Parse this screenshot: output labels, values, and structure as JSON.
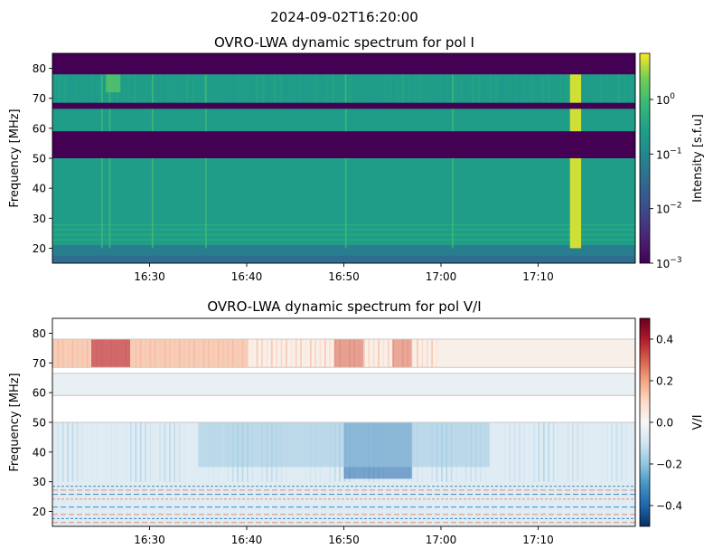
{
  "figure": {
    "suptitle": "2024-09-02T16:20:00"
  },
  "chart_data": [
    {
      "type": "heatmap",
      "title": "OVRO-LWA dynamic spectrum for pol I",
      "xlabel": "",
      "ylabel": "Frequency [MHz]",
      "x_ticks": [
        "16:30",
        "16:40",
        "16:50",
        "17:00",
        "17:10"
      ],
      "x_tick_minutes": [
        10,
        20,
        30,
        40,
        50
      ],
      "x_range_minutes": [
        0,
        60
      ],
      "y_range": [
        15,
        85
      ],
      "y_ticks": [
        20,
        30,
        40,
        50,
        60,
        70,
        80
      ],
      "colorbar": {
        "label": "Intensity [s.f.u]",
        "scale": "log",
        "range": [
          0.001,
          7
        ],
        "ticks": [
          {
            "base": "10",
            "exp": "0",
            "value": 1
          },
          {
            "base": "10",
            "exp": "−1",
            "value": 0.1
          },
          {
            "base": "10",
            "exp": "−2",
            "value": 0.01
          },
          {
            "base": "10",
            "exp": "−3",
            "value": 0.001
          }
        ],
        "colormap": "viridis"
      },
      "masked_bands_mhz": [
        [
          78,
          85
        ],
        [
          66.5,
          68.5
        ],
        [
          50,
          59
        ]
      ],
      "background_level": 0.25,
      "burst_minutes": [
        5.1,
        5.9,
        10.3,
        15.8,
        30.2,
        41.2,
        53.6,
        54.1
      ]
    },
    {
      "type": "heatmap",
      "title": "OVRO-LWA dynamic spectrum for pol V/I",
      "xlabel": "",
      "ylabel": "Frequency [MHz]",
      "x_ticks": [
        "16:30",
        "16:40",
        "16:50",
        "17:00",
        "17:10"
      ],
      "x_tick_minutes": [
        10,
        20,
        30,
        40,
        50
      ],
      "x_range_minutes": [
        0,
        60
      ],
      "y_range": [
        15,
        85
      ],
      "y_ticks": [
        20,
        30,
        40,
        50,
        60,
        70,
        80
      ],
      "colorbar": {
        "label": "V/I",
        "scale": "linear",
        "range": [
          -0.5,
          0.5
        ],
        "ticks": [
          "0.4",
          "0.2",
          "0.0",
          "−0.2",
          "−0.4"
        ],
        "tick_values": [
          0.4,
          0.2,
          0.0,
          -0.2,
          -0.4
        ],
        "colormap": "RdBu_r"
      },
      "masked_bands_mhz": [
        [
          78,
          85
        ],
        [
          66.5,
          68.5
        ],
        [
          50,
          59
        ]
      ],
      "features": [
        {
          "band_mhz": [
            68.5,
            78
          ],
          "minutes": [
            0,
            20
          ],
          "value": 0.18
        },
        {
          "band_mhz": [
            68.5,
            78
          ],
          "minutes": [
            4,
            8
          ],
          "value": 0.4
        },
        {
          "band_mhz": [
            68.5,
            78
          ],
          "minutes": [
            29,
            32
          ],
          "value": 0.3
        },
        {
          "band_mhz": [
            68.5,
            78
          ],
          "minutes": [
            35,
            37
          ],
          "value": 0.28
        },
        {
          "band_mhz": [
            31,
            50
          ],
          "minutes": [
            30,
            37
          ],
          "value": -0.4
        },
        {
          "band_mhz": [
            35,
            50
          ],
          "minutes": [
            15,
            45
          ],
          "value": -0.18
        }
      ]
    }
  ]
}
